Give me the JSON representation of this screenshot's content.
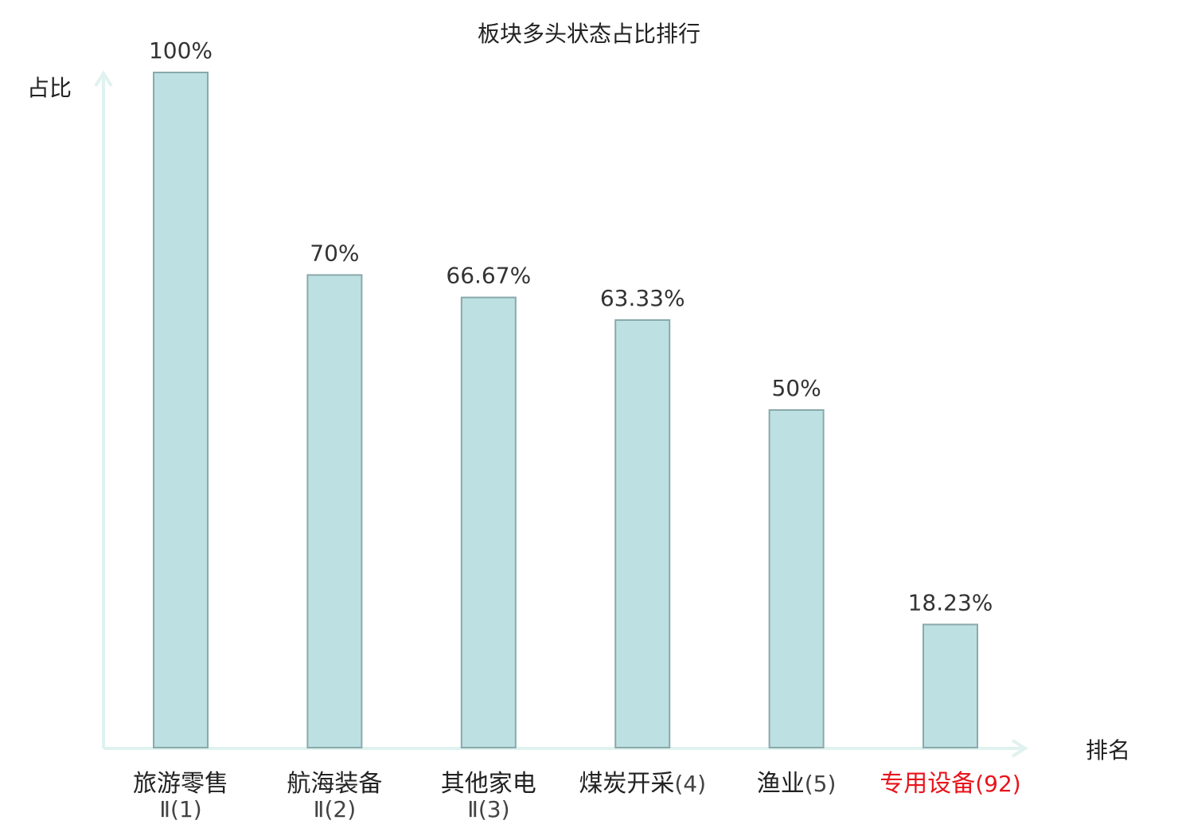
{
  "chart_data": {
    "type": "bar",
    "title": "板块多头状态占比排行",
    "ylabel": "占比",
    "xlabel": "排名",
    "ylim": [
      0,
      100
    ],
    "grid": false,
    "legend": "none",
    "categories": [
      {
        "name": "旅游零售",
        "rank": "Ⅱ(1)",
        "highlight": false
      },
      {
        "name": "航海装备",
        "rank": "Ⅱ(2)",
        "highlight": false
      },
      {
        "name": "其他家电",
        "rank": "Ⅱ(3)",
        "highlight": false
      },
      {
        "name": "煤炭开采",
        "rank": "(4)",
        "highlight": false
      },
      {
        "name": "渔业",
        "rank": "(5)",
        "highlight": false
      },
      {
        "name": "专用设备",
        "rank": "(92)",
        "highlight": true
      }
    ],
    "values": [
      100,
      70,
      66.67,
      63.33,
      50,
      18.23
    ],
    "value_labels": [
      "100%",
      "70%",
      "66.67%",
      "63.33%",
      "50%",
      "18.23%"
    ],
    "colors": {
      "bar_fill": "#bde0e2",
      "bar_stroke": "#8aa9ab",
      "axis": "#e0f2ef",
      "text": "#222222",
      "rank_text": "#444444",
      "highlight": "#e8141b"
    }
  }
}
